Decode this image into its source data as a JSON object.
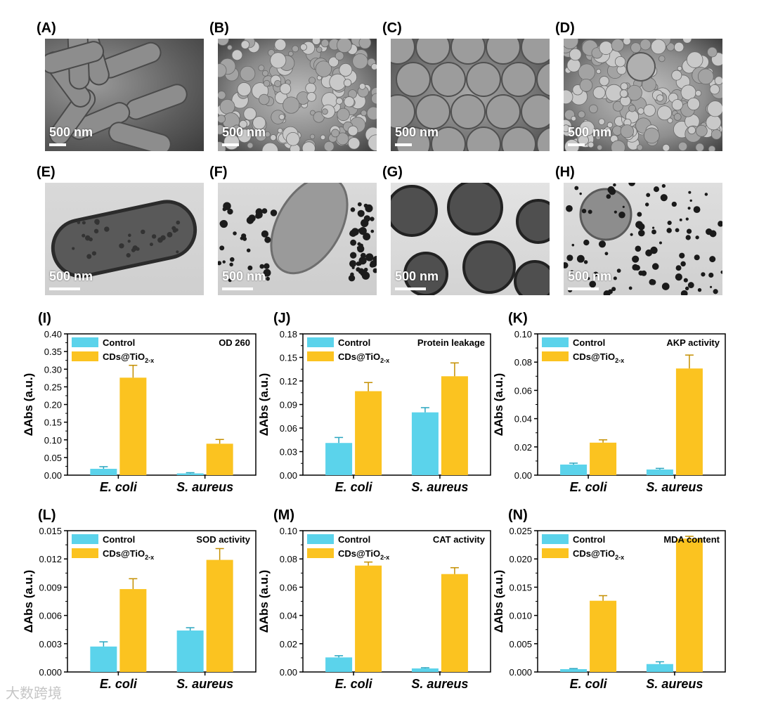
{
  "micro_panels": [
    {
      "label": "(A)",
      "scale": "500 nm",
      "kind": "sem-rods"
    },
    {
      "label": "(B)",
      "scale": "500 nm",
      "kind": "sem-aggregate"
    },
    {
      "label": "(C)",
      "scale": "500 nm",
      "kind": "sem-cocci"
    },
    {
      "label": "(D)",
      "scale": "500 nm",
      "kind": "sem-aggregate-cocci"
    },
    {
      "label": "(E)",
      "scale": "500 nm",
      "kind": "tem-rod"
    },
    {
      "label": "(F)",
      "scale": "500 nm",
      "kind": "tem-rod-particles"
    },
    {
      "label": "(G)",
      "scale": "500 nm",
      "kind": "tem-cocci"
    },
    {
      "label": "(H)",
      "scale": "500 nm",
      "kind": "tem-cocci-particles"
    }
  ],
  "colors": {
    "control": "#5bd3eb",
    "treatment": "#fbc320"
  },
  "chart_data": [
    {
      "label": "(I)",
      "type": "bar",
      "title": "OD 260",
      "ylabel": "ΔAbs (a.u.)",
      "ylim": [
        0,
        0.4
      ],
      "ticks": [
        "0.00",
        "0.05",
        "0.10",
        "0.15",
        "0.20",
        "0.25",
        "0.30",
        "0.35",
        "0.40"
      ],
      "categories": [
        "E. coli",
        "S. aureus"
      ],
      "series": [
        {
          "name": "Control",
          "values": [
            0.018,
            0.005
          ],
          "errors": [
            0.006,
            0.002
          ]
        },
        {
          "name": "CDs@TiO2-x",
          "values": [
            0.276,
            0.089
          ],
          "errors": [
            0.035,
            0.012
          ]
        }
      ]
    },
    {
      "label": "(J)",
      "type": "bar",
      "title": "Protein leakage",
      "ylabel": "ΔAbs (a.u.)",
      "ylim": [
        0,
        0.18
      ],
      "ticks": [
        "0.00",
        "0.03",
        "0.06",
        "0.09",
        "0.12",
        "0.15",
        "0.18"
      ],
      "categories": [
        "E. coli",
        "S. aureus"
      ],
      "series": [
        {
          "name": "Control",
          "values": [
            0.041,
            0.08
          ],
          "errors": [
            0.007,
            0.006
          ]
        },
        {
          "name": "CDs@TiO2-x",
          "values": [
            0.107,
            0.126
          ],
          "errors": [
            0.011,
            0.017
          ]
        }
      ]
    },
    {
      "label": "(K)",
      "type": "bar",
      "title": "AKP activity",
      "ylabel": "ΔAbs (a.u.)",
      "ylim": [
        0,
        0.1
      ],
      "ticks": [
        "0.00",
        "0.02",
        "0.04",
        "0.06",
        "0.08",
        "0.10"
      ],
      "categories": [
        "E. coli",
        "S. aureus"
      ],
      "series": [
        {
          "name": "Control",
          "values": [
            0.0075,
            0.004
          ],
          "errors": [
            0.001,
            0.0008
          ]
        },
        {
          "name": "CDs@TiO2-x",
          "values": [
            0.023,
            0.0755
          ],
          "errors": [
            0.002,
            0.0095
          ]
        }
      ]
    },
    {
      "label": "(L)",
      "type": "bar",
      "title": "SOD activity",
      "ylabel": "ΔAbs (a.u.)",
      "ylim": [
        0,
        0.015
      ],
      "ticks": [
        "0.000",
        "0.003",
        "0.006",
        "0.009",
        "0.012",
        "0.015"
      ],
      "categories": [
        "E. coli",
        "S. aureus"
      ],
      "series": [
        {
          "name": "Control",
          "values": [
            0.0027,
            0.0044
          ],
          "errors": [
            0.0005,
            0.0003
          ]
        },
        {
          "name": "CDs@TiO2-x",
          "values": [
            0.0088,
            0.0119
          ],
          "errors": [
            0.0011,
            0.0012
          ]
        }
      ]
    },
    {
      "label": "(M)",
      "type": "bar",
      "title": "CAT activity",
      "ylabel": "ΔAbs (a.u.)",
      "ylim": [
        0,
        0.1
      ],
      "ticks": [
        "0.00",
        "0.02",
        "0.04",
        "0.06",
        "0.08",
        "0.10"
      ],
      "categories": [
        "E. coli",
        "S. aureus"
      ],
      "series": [
        {
          "name": "Control",
          "values": [
            0.0103,
            0.0025
          ],
          "errors": [
            0.0012,
            0.0005
          ]
        },
        {
          "name": "CDs@TiO2-x",
          "values": [
            0.0753,
            0.0693
          ],
          "errors": [
            0.0025,
            0.0045
          ]
        }
      ]
    },
    {
      "label": "(N)",
      "type": "bar",
      "title": "MDA content",
      "ylabel": "ΔAbs (a.u.)",
      "ylim": [
        0,
        0.025
      ],
      "ticks": [
        "0.000",
        "0.005",
        "0.010",
        "0.015",
        "0.020",
        "0.025"
      ],
      "categories": [
        "E. coli",
        "S. aureus"
      ],
      "series": [
        {
          "name": "Control",
          "values": [
            0.0005,
            0.0014
          ],
          "errors": [
            0.0001,
            0.0004
          ]
        },
        {
          "name": "CDs@TiO2-x",
          "values": [
            0.0126,
            0.0236
          ],
          "errors": [
            0.0009,
            0.0004
          ]
        }
      ]
    }
  ],
  "watermark": "大数跨境"
}
